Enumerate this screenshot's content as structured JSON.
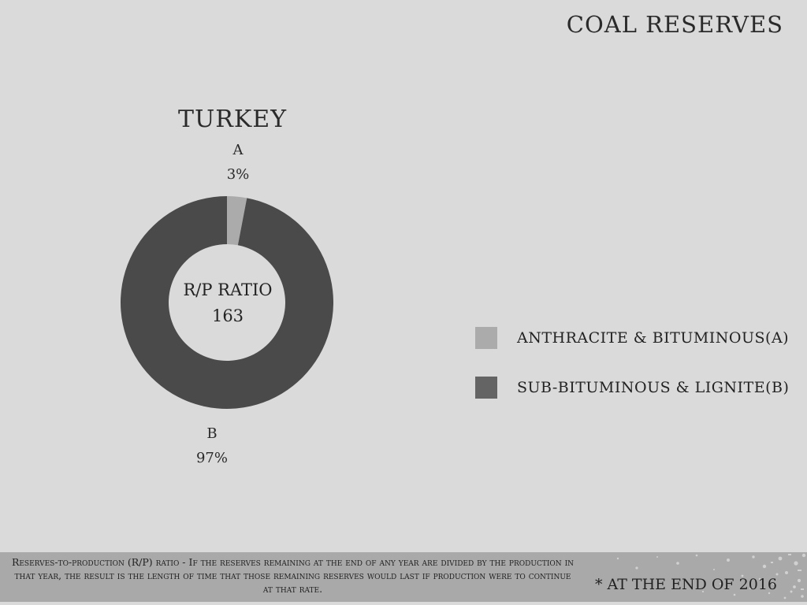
{
  "page_title": "COAL RESERVES",
  "chart_data": {
    "type": "pie",
    "title": "TURKEY",
    "categories": [
      "A",
      "B"
    ],
    "values": [
      3,
      97
    ],
    "value_labels": [
      "3%",
      "97%"
    ],
    "center_text": {
      "line1": "R/P RATIO",
      "line2": "163"
    },
    "colors": [
      "#ababab",
      "#4a4a4a"
    ],
    "legend": [
      {
        "label": "ANTHRACITE & BITUMINOUS(A)",
        "color": "#ababab"
      },
      {
        "label": "SUB-BITUMINOUS & LIGNITE(B)",
        "color": "#646464"
      }
    ],
    "legend_position": "right"
  },
  "footnote": "Reserves-to-production (R/P) ratio - If the reserves remaining at the end of any year are divided by the production in that year, the result is the length of time that those remaining reserves would last if production were to continue at that rate.",
  "as_of_note": "* AT THE END OF 2016"
}
